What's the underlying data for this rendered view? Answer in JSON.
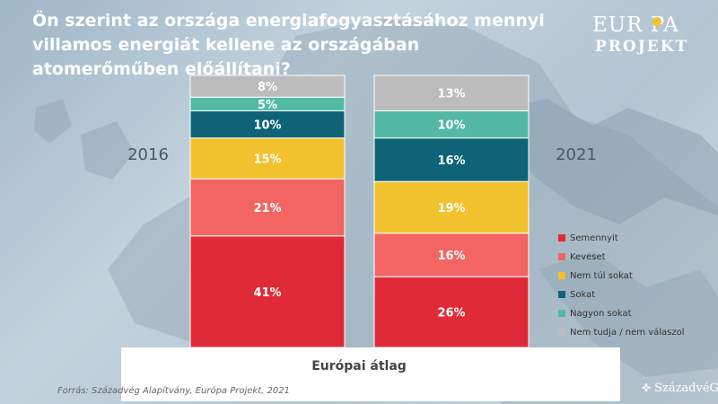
{
  "header": {
    "title": "Ön szerint az országa energiafogyasztásához mennyi villamos energiát kellene az országában atomerőműben előállítani?"
  },
  "logo": {
    "top": "EUR PA",
    "bottom": "PROJEKT"
  },
  "colors": {
    "Semennyit": "#e02a37",
    "Keveset": "#f26563",
    "Nem túl sokat": "#f2c12e",
    "Sokat": "#0e6476",
    "Nagyon sokat": "#53b9a5",
    "Nem tudja / nem válaszol": "#bcbcbc"
  },
  "chart_data": {
    "type": "bar",
    "stacked": true,
    "normalized": true,
    "categories": [
      "2016",
      "2021"
    ],
    "series": [
      {
        "name": "Semennyit",
        "values": [
          41,
          26
        ]
      },
      {
        "name": "Keveset",
        "values": [
          21,
          16
        ]
      },
      {
        "name": "Nem túl sokat",
        "values": [
          15,
          19
        ]
      },
      {
        "name": "Sokat",
        "values": [
          10,
          16
        ]
      },
      {
        "name": "Nagyon sokat",
        "values": [
          5,
          10
        ]
      },
      {
        "name": "Nem tudja / nem válaszol",
        "values": [
          8,
          13
        ]
      }
    ],
    "value_suffix": "%",
    "xlabel": "Európai átlag",
    "ylabel": "",
    "ylim": [
      0,
      100
    ],
    "grid": false,
    "legend_position": "right"
  },
  "source": "Forrás: Századvég Alapítvány, Európa Projekt, 2021",
  "bottom_logo": {
    "mark": "✜",
    "text": "SzázadvéG"
  }
}
